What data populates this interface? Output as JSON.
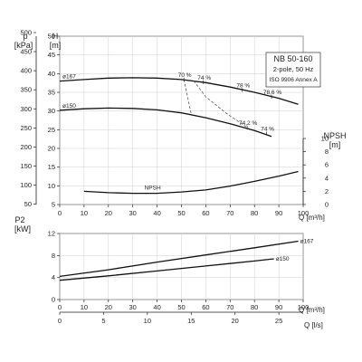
{
  "info_box": {
    "model": "NB 50-160",
    "poles": "2-pole, 50 Hz",
    "standard": "ISO 9906 Annex A"
  },
  "chart_data": [
    {
      "type": "line",
      "panel": "head",
      "left_outer_axis": {
        "label_line1": "p",
        "label_line2": "[kPa]",
        "ticks": [
          "50",
          "100",
          "150",
          "200",
          "250",
          "300",
          "350",
          "400",
          "450",
          "500"
        ]
      },
      "left_inner_axis": {
        "label_line1": "H",
        "label_line2": "[m]",
        "ticks": [
          "5",
          "10",
          "15",
          "20",
          "25",
          "30",
          "35",
          "40",
          "45",
          "50"
        ],
        "ylim": [
          5,
          50
        ]
      },
      "right_axis": {
        "label_line1": "NPSH",
        "label_line2": "[m]",
        "ticks": [
          "0",
          "2",
          "4",
          "6",
          "8",
          "10"
        ],
        "ylim": [
          0,
          10
        ]
      },
      "x_axis": {
        "label": "Q [m³/h]",
        "ticks": [
          "0",
          "10",
          "20",
          "30",
          "40",
          "50",
          "60",
          "70",
          "80",
          "90",
          "100"
        ],
        "xlim": [
          0,
          100
        ]
      },
      "series": [
        {
          "name": "ø167",
          "axis": "left",
          "x": [
            0,
            10,
            20,
            30,
            40,
            50,
            60,
            70,
            80,
            90,
            98
          ],
          "y": [
            38.0,
            38.4,
            38.8,
            38.9,
            38.8,
            38.4,
            37.6,
            36.4,
            35.0,
            33.4,
            31.8
          ]
        },
        {
          "name": "ø150",
          "axis": "left",
          "x": [
            0,
            10,
            20,
            30,
            40,
            50,
            60,
            70,
            80,
            87
          ],
          "y": [
            30.2,
            30.6,
            30.8,
            30.7,
            30.3,
            29.5,
            28.2,
            26.6,
            24.8,
            23.2
          ]
        },
        {
          "name": "NPSH",
          "axis": "right",
          "x": [
            10,
            20,
            30,
            40,
            50,
            60,
            70,
            80,
            90,
            98
          ],
          "y": [
            2.0,
            1.8,
            1.7,
            1.7,
            1.9,
            2.2,
            2.8,
            3.5,
            4.3,
            5.0
          ]
        }
      ],
      "efficiency_labels": [
        "70 %",
        "74 %",
        "78 %",
        "78,6 %",
        "74,2 %",
        "74 %"
      ],
      "efficiency_points": [
        {
          "label": "70 %",
          "x": 51,
          "y": 38.4
        },
        {
          "label": "74 %",
          "x": 59,
          "y": 37.7
        },
        {
          "label": "78 %",
          "x": 75,
          "y": 35.6
        },
        {
          "label": "78,6 %",
          "x": 87,
          "y": 33.8
        },
        {
          "label": "74,2 %",
          "x": 77,
          "y": 25.6
        },
        {
          "label": "74 %",
          "x": 85,
          "y": 24.0
        }
      ],
      "efficiency_guides": [
        {
          "x": [
            51,
            54
          ],
          "y": [
            38.4,
            29.2
          ]
        },
        {
          "x": [
            55,
            60,
            68,
            77
          ],
          "y": [
            38.1,
            33.8,
            29.6,
            25.6
          ]
        }
      ]
    },
    {
      "type": "line",
      "panel": "power",
      "left_axis": {
        "label_line1": "P2",
        "label_line2": "[kW]",
        "ticks": [
          "0",
          "4",
          "8",
          "12"
        ],
        "ylim": [
          0,
          12
        ]
      },
      "x_axis": {
        "label": "Q [m³/h]",
        "ticks": [
          "0",
          "10",
          "20",
          "30",
          "40",
          "50",
          "60",
          "70",
          "80",
          "90",
          "100"
        ],
        "xlim": [
          0,
          100
        ]
      },
      "series": [
        {
          "name": "ø167",
          "x": [
            0,
            20,
            40,
            60,
            80,
            98
          ],
          "y": [
            4.2,
            5.4,
            6.8,
            8.1,
            9.4,
            10.6
          ]
        },
        {
          "name": "ø150",
          "x": [
            0,
            20,
            40,
            60,
            80,
            88
          ],
          "y": [
            3.5,
            4.3,
            5.2,
            6.1,
            7.0,
            7.4
          ]
        }
      ],
      "bottom_axis": {
        "label": "Q [l/s]",
        "ticks": [
          "0",
          "5",
          "10",
          "15",
          "20",
          "25"
        ]
      }
    }
  ]
}
